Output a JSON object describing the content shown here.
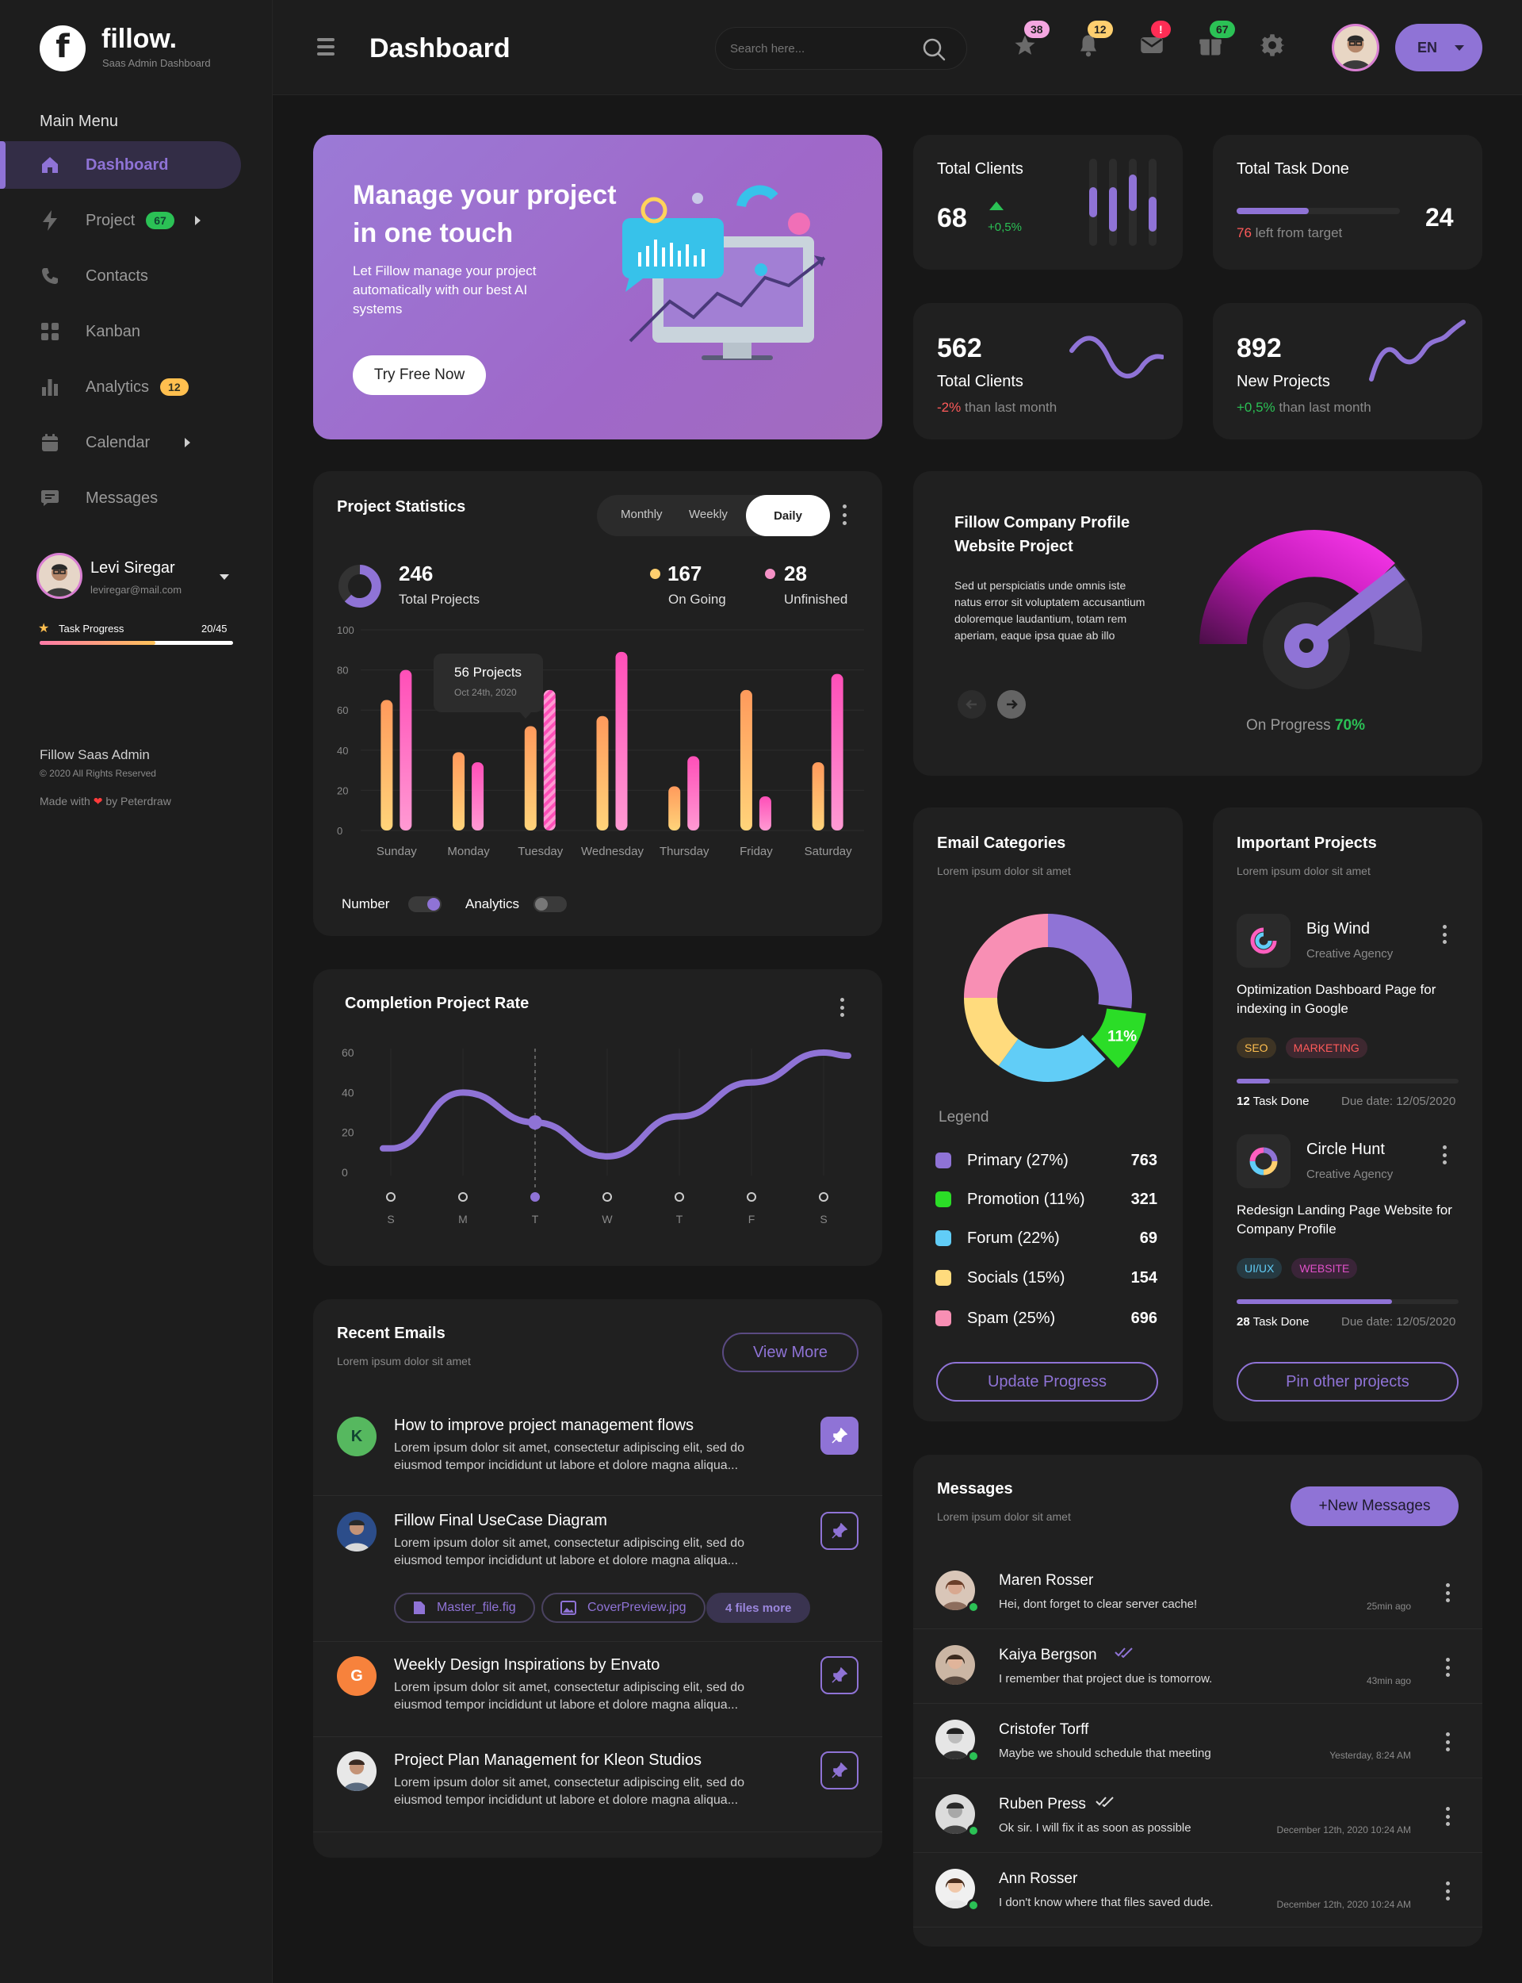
{
  "brand": {
    "name": "fillow.",
    "tagline": "Saas Admin Dashboard",
    "logo_letter": "f"
  },
  "sidebar": {
    "menu_heading": "Main Menu",
    "items": [
      {
        "label": "Dashboard",
        "icon": "home-icon",
        "active": true
      },
      {
        "label": "Project",
        "icon": "bolt-icon",
        "badge": "67",
        "badge_color": "#2bc155",
        "arrow": true
      },
      {
        "label": "Contacts",
        "icon": "phone-icon"
      },
      {
        "label": "Kanban",
        "icon": "grid-icon"
      },
      {
        "label": "Analytics",
        "icon": "bar-chart-icon",
        "badge": "12",
        "badge_color": "#ffbf4f"
      },
      {
        "label": "Calendar",
        "icon": "calendar-icon",
        "arrow": true
      },
      {
        "label": "Messages",
        "icon": "chat-icon"
      }
    ],
    "user": {
      "name": "Levi Siregar",
      "email": "leviregar@mail.com"
    },
    "task_progress": {
      "label": "Task Progress",
      "value": "20/45",
      "fraction": 0.98
    },
    "footer": {
      "title": "Fillow Saas Admin",
      "copyright": "© 2020 All Rights Reserved",
      "made_prefix": "Made with",
      "made_suffix": "by Peterdraw"
    }
  },
  "header": {
    "title": "Dashboard",
    "search_placeholder": "Search here...",
    "badges": [
      {
        "icon": "star-icon",
        "count": "38",
        "color": "#f4a6e0"
      },
      {
        "icon": "bell-icon",
        "count": "12",
        "color": "#ffcf6f"
      },
      {
        "icon": "mail-icon",
        "count": "!",
        "color": "#ff2d55"
      },
      {
        "icon": "gift-icon",
        "count": "67",
        "color": "#2bc155"
      }
    ],
    "language": "EN"
  },
  "hero": {
    "title": "Manage your project in one touch",
    "text": "Let Fillow manage your project automatically with our best AI systems",
    "button": "Try Free Now"
  },
  "stats": {
    "total_clients": {
      "title": "Total Clients",
      "value": "68",
      "change": "+0,5%"
    },
    "total_task": {
      "title": "Total Task Done",
      "value": "24",
      "left_num": "76",
      "left_text": "left from target",
      "fraction": 0.44
    },
    "clients_month": {
      "value": "562",
      "title": "Total Clients",
      "change": "-2%",
      "suffix": "than last month"
    },
    "new_projects": {
      "value": "892",
      "title": "New Projects",
      "change": "+0,5%",
      "suffix": "than last month"
    }
  },
  "project_stats": {
    "title": "Project Statistics",
    "tabs": [
      "Monthly",
      "Weekly",
      "Daily"
    ],
    "active_tab": "Daily",
    "total": {
      "value": "246",
      "label": "Total Projects"
    },
    "ongoing": {
      "value": "167",
      "label": "On Going",
      "color": "#ffcf6f"
    },
    "unfinished": {
      "value": "28",
      "label": "Unfinished",
      "color": "#f591c6"
    },
    "tooltip": {
      "title": "56 Projects",
      "date": "Oct 24th, 2020"
    },
    "toggles": [
      {
        "label": "Number",
        "on": true
      },
      {
        "label": "Analytics",
        "on": false
      }
    ]
  },
  "chart_data": [
    {
      "type": "bar",
      "categories": [
        "Sunday",
        "Monday",
        "Tuesday",
        "Wednesday",
        "Thursday",
        "Friday",
        "Saturday"
      ],
      "series": [
        {
          "values": [
            65,
            39,
            52,
            57,
            22,
            70,
            34
          ]
        },
        {
          "values": [
            80,
            34,
            70,
            89,
            37,
            17,
            78
          ]
        }
      ],
      "ylim": [
        0,
        100
      ],
      "yticks": [
        0,
        20,
        40,
        60,
        80,
        100
      ],
      "colors": [
        "#ffb061",
        "#ff5fbf"
      ]
    },
    {
      "type": "line",
      "title": "Completion Project Rate",
      "x": [
        "S",
        "M",
        "T",
        "W",
        "T",
        "F",
        "S"
      ],
      "values": [
        12,
        40,
        25,
        8,
        28,
        45,
        60
      ],
      "ylim": [
        0,
        60
      ],
      "yticks": [
        0,
        20,
        40,
        60
      ],
      "highlight": "T",
      "color": "#8f73d6"
    },
    {
      "type": "pie",
      "title": "Email Categories",
      "categories": [
        "Primary",
        "Promotion",
        "Forum",
        "Socials",
        "Spam"
      ],
      "values": [
        27,
        11,
        22,
        15,
        25
      ],
      "colors": [
        "#8f73d6",
        "#2bdd27",
        "#61cdf7",
        "#ffdb7d",
        "#f88fb4"
      ],
      "highlight_label": "11%"
    }
  ],
  "company": {
    "title": "Fillow Company Profile Website Project",
    "text": "Sed ut perspiciatis unde omnis iste natus error sit voluptatem accusantium doloremque laudantium, totam rem aperiam, eaque ipsa quae ab illo",
    "progress_label": "On Progress",
    "progress_value": "70%",
    "fraction": 0.7
  },
  "completion": {
    "title": "Completion Project Rate"
  },
  "email_categories": {
    "title": "Email Categories",
    "subtitle": "Lorem ipsum dolor sit amet",
    "legend_title": "Legend",
    "rows": [
      {
        "label": "Primary (27%)",
        "count": "763",
        "color": "#8f73d6"
      },
      {
        "label": "Promotion (11%)",
        "count": "321",
        "color": "#2bdd27"
      },
      {
        "label": "Forum (22%)",
        "count": "69",
        "color": "#61cdf7"
      },
      {
        "label": "Socials (15%)",
        "count": "154",
        "color": "#ffdb7d"
      },
      {
        "label": "Spam (25%)",
        "count": "696",
        "color": "#f88fb4"
      }
    ],
    "button": "Update Progress"
  },
  "important": {
    "title": "Important Projects",
    "subtitle": "Lorem ipsum dolor sit amet",
    "projects": [
      {
        "name": "Big Wind",
        "agency": "Creative Agency",
        "desc": "Optimization Dashboard Page for indexing in Google",
        "tags": [
          "SEO",
          "MARKETING"
        ],
        "done": "12",
        "done_label": "Task Done",
        "due": "Due date: 12/05/2020",
        "fraction": 0.15
      },
      {
        "name": "Circle Hunt",
        "agency": "Creative Agency",
        "desc": "Redesign Landing Page Website for Company Profile",
        "tags": [
          "UI/UX",
          "WEBSITE"
        ],
        "done": "28",
        "done_label": "Task Done",
        "due": "Due date: 12/05/2020",
        "fraction": 0.7
      }
    ],
    "button": "Pin other projects"
  },
  "recent_emails": {
    "title": "Recent Emails",
    "subtitle": "Lorem ipsum dolor sit amet",
    "button": "View More",
    "body": "Lorem ipsum dolor sit amet, consectetur adipiscing elit, sed do eiusmod tempor incididunt ut labore et dolore magna aliqua...",
    "items": [
      {
        "initial": "K",
        "title": "How to improve project management flows",
        "avatar_color": "#56b85f"
      },
      {
        "title": "Fillow Final UseCase Diagram",
        "attachments": [
          "Master_file.fig",
          "CoverPreview.jpg"
        ],
        "more": "4 files more"
      },
      {
        "initial": "G",
        "title": "Weekly Design Inspirations by Envato",
        "avatar_color": "#f7823c"
      },
      {
        "title": "Project Plan Management for Kleon Studios"
      }
    ]
  },
  "messages": {
    "title": "Messages",
    "subtitle": "Lorem ipsum dolor sit amet",
    "button": "+New Messages",
    "items": [
      {
        "name": "Maren Rosser",
        "text": "Hei, dont forget to clear server cache!",
        "time": "25min ago"
      },
      {
        "name": "Kaiya Bergson",
        "text": "I remember that project due is tomorrow.",
        "time": "43min ago"
      },
      {
        "name": "Cristofer Torff",
        "text": "Maybe we should schedule that meeting",
        "time": "Yesterday, 8:24 AM"
      },
      {
        "name": "Ruben Press",
        "text": "Ok sir. I will fix it as soon as possible",
        "time": "December 12th, 2020  10:24 AM"
      },
      {
        "name": "Ann Rosser",
        "text": "I don't know where that files saved dude.",
        "time": "December 12th, 2020  10:24 AM"
      }
    ]
  }
}
